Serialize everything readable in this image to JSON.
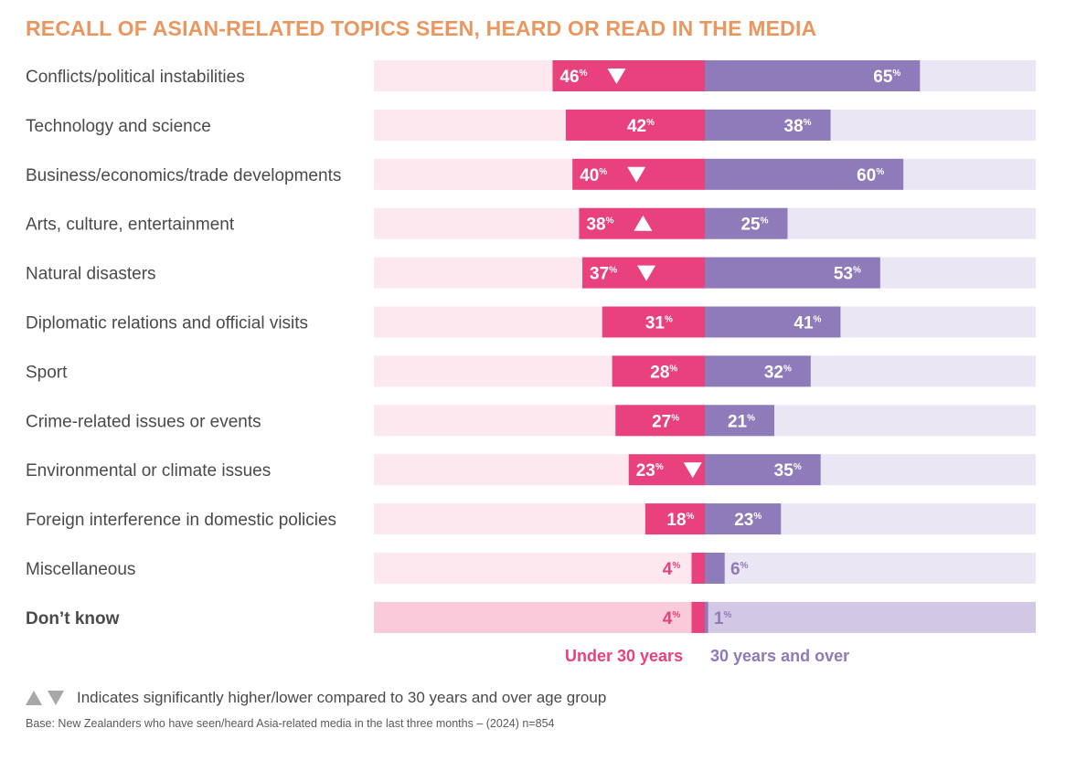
{
  "title": "RECALL OF ASIAN-RELATED TOPICS SEEN, HEARD OR READ IN THE MEDIA",
  "legend_under": "Under 30 years",
  "legend_over": "30 years and over",
  "note": "Indicates significantly higher/lower compared to 30 years and over age group",
  "base": "Base: New Zealanders who have seen/heard Asia-related media in the last three months – (2024) n=854",
  "colors": {
    "under_bar": "#e9417e",
    "under_bg": "#fce8ee",
    "under_bg_dontknow": "#f8cada",
    "over_bar": "#8f7aba",
    "over_bg": "#ebe6f4",
    "over_bg_dontknow": "#d2c8e6",
    "title": "#e9975f",
    "arrow": "#a8a8a8"
  },
  "chart_data": {
    "type": "bar",
    "orientation": "diverging-horizontal",
    "unit": "%",
    "categories": [
      "Conflicts/political instabilities",
      "Technology and science",
      "Business/economics/trade developments",
      "Arts, culture, entertainment",
      "Natural disasters",
      "Diplomatic relations and official visits",
      "Sport",
      "Crime-related issues or events",
      "Environmental or climate issues",
      "Foreign interference in domestic policies",
      "Miscellaneous",
      "Don’t know"
    ],
    "series": [
      {
        "name": "Under 30 years",
        "values": [
          46,
          42,
          40,
          38,
          37,
          31,
          28,
          27,
          23,
          18,
          4,
          4
        ],
        "significance": [
          "down",
          "",
          "down",
          "up",
          "down",
          "",
          "",
          "",
          "down",
          "",
          "",
          ""
        ]
      },
      {
        "name": "30 years and over",
        "values": [
          65,
          38,
          60,
          25,
          53,
          41,
          32,
          21,
          35,
          23,
          6,
          1
        ]
      }
    ],
    "xlim": [
      0,
      100
    ]
  }
}
